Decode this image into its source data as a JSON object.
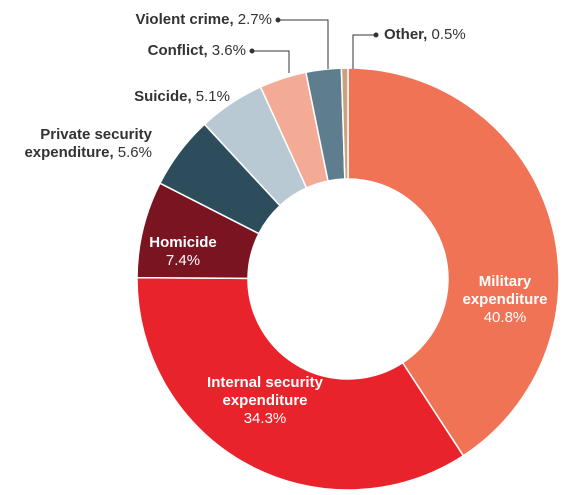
{
  "chart_data": {
    "type": "donut",
    "categories": [
      "Military expenditure",
      "Internal security expenditure",
      "Homicide",
      "Private security expenditure,",
      "Suicide,",
      "Conflict,",
      "Violent crime,",
      "Other,"
    ],
    "values": [
      40.8,
      34.3,
      7.4,
      5.6,
      5.1,
      3.6,
      2.7,
      0.5
    ],
    "value_labels": [
      "40.8%",
      "34.3%",
      "7.4%",
      "5.6%",
      "5.1%",
      "3.6%",
      "2.7%",
      "0.5%"
    ],
    "colors": [
      "#f07355",
      "#e8232b",
      "#7a1420",
      "#2d4d5c",
      "#b8c9d4",
      "#f4ab95",
      "#5e7d8e",
      "#c9a27e"
    ]
  }
}
